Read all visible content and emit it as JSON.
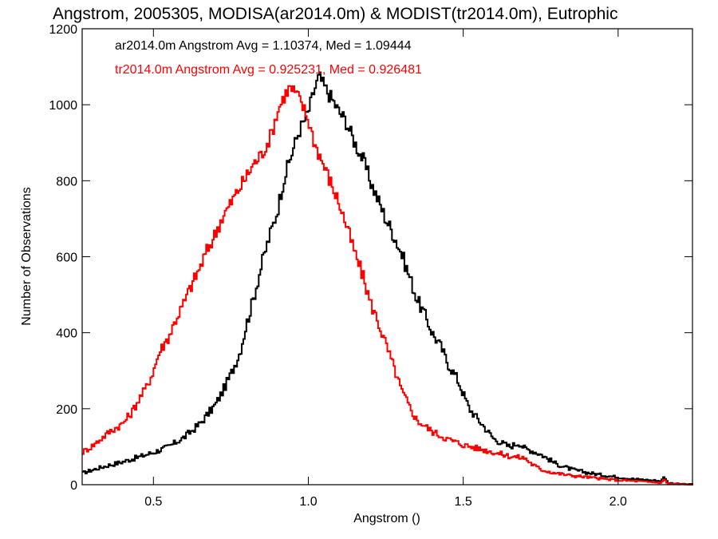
{
  "chart_data": {
    "type": "line",
    "title": "Angstrom, 2005305, MODISA(ar2014.0m) & MODIST(tr2014.0m), Eutrophic",
    "xlabel": "Angstrom ()",
    "ylabel": "Number of Observations",
    "xlim": [
      0.27,
      2.24
    ],
    "ylim": [
      0,
      1200
    ],
    "x_ticks": [
      0.5,
      1.0,
      1.5,
      2.0
    ],
    "x_tick_labels": [
      "0.5",
      "1.0",
      "1.5",
      "2.0"
    ],
    "y_ticks": [
      0,
      200,
      400,
      600,
      800,
      1000,
      1200
    ],
    "y_tick_labels": [
      "0",
      "200",
      "400",
      "600",
      "800",
      "1000",
      "1200"
    ],
    "grid": false,
    "legend_position": "top-left",
    "series": [
      {
        "name": "ar2014.0m",
        "annotation": "ar2014.0m Angstrom Avg = 1.10374, Med = 1.09444",
        "color": "#000000",
        "step": true,
        "points": [
          [
            0.27,
            30
          ],
          [
            0.3,
            38
          ],
          [
            0.35,
            50
          ],
          [
            0.4,
            60
          ],
          [
            0.45,
            72
          ],
          [
            0.5,
            85
          ],
          [
            0.55,
            100
          ],
          [
            0.6,
            125
          ],
          [
            0.65,
            160
          ],
          [
            0.7,
            210
          ],
          [
            0.72,
            240
          ],
          [
            0.75,
            290
          ],
          [
            0.78,
            350
          ],
          [
            0.8,
            420
          ],
          [
            0.82,
            480
          ],
          [
            0.85,
            580
          ],
          [
            0.87,
            640
          ],
          [
            0.9,
            720
          ],
          [
            0.92,
            800
          ],
          [
            0.95,
            880
          ],
          [
            0.97,
            930
          ],
          [
            1.0,
            980
          ],
          [
            1.02,
            1040
          ],
          [
            1.035,
            1075
          ],
          [
            1.05,
            1050
          ],
          [
            1.08,
            1010
          ],
          [
            1.1,
            980
          ],
          [
            1.12,
            960
          ],
          [
            1.15,
            900
          ],
          [
            1.18,
            850
          ],
          [
            1.2,
            800
          ],
          [
            1.22,
            760
          ],
          [
            1.25,
            700
          ],
          [
            1.28,
            650
          ],
          [
            1.3,
            610
          ],
          [
            1.33,
            540
          ],
          [
            1.35,
            490
          ],
          [
            1.38,
            440
          ],
          [
            1.4,
            400
          ],
          [
            1.43,
            360
          ],
          [
            1.45,
            320
          ],
          [
            1.48,
            280
          ],
          [
            1.5,
            240
          ],
          [
            1.52,
            200
          ],
          [
            1.55,
            170
          ],
          [
            1.58,
            140
          ],
          [
            1.6,
            120
          ],
          [
            1.65,
            100
          ],
          [
            1.68,
            110
          ],
          [
            1.7,
            95
          ],
          [
            1.72,
            90
          ],
          [
            1.75,
            80
          ],
          [
            1.8,
            55
          ],
          [
            1.85,
            40
          ],
          [
            1.9,
            32
          ],
          [
            1.95,
            25
          ],
          [
            2.0,
            20
          ],
          [
            2.05,
            15
          ],
          [
            2.1,
            12
          ],
          [
            2.14,
            10
          ],
          [
            2.15,
            22
          ],
          [
            2.16,
            5
          ],
          [
            2.2,
            2
          ],
          [
            2.24,
            1
          ]
        ]
      },
      {
        "name": "tr2014.0m",
        "annotation": "tr2014.0m Angstrom Avg = 0.925231, Med = 0.926481",
        "color": "#ff0000",
        "step": true,
        "points": [
          [
            0.27,
            85
          ],
          [
            0.3,
            100
          ],
          [
            0.33,
            120
          ],
          [
            0.36,
            140
          ],
          [
            0.4,
            160
          ],
          [
            0.43,
            190
          ],
          [
            0.45,
            220
          ],
          [
            0.48,
            260
          ],
          [
            0.5,
            300
          ],
          [
            0.52,
            350
          ],
          [
            0.55,
            390
          ],
          [
            0.57,
            430
          ],
          [
            0.6,
            480
          ],
          [
            0.62,
            520
          ],
          [
            0.65,
            570
          ],
          [
            0.67,
            610
          ],
          [
            0.7,
            660
          ],
          [
            0.72,
            700
          ],
          [
            0.75,
            740
          ],
          [
            0.77,
            770
          ],
          [
            0.8,
            810
          ],
          [
            0.82,
            840
          ],
          [
            0.85,
            870
          ],
          [
            0.88,
            920
          ],
          [
            0.9,
            980
          ],
          [
            0.92,
            1020
          ],
          [
            0.94,
            1045
          ],
          [
            0.96,
            1030
          ],
          [
            0.98,
            1000
          ],
          [
            1.0,
            960
          ],
          [
            1.02,
            900
          ],
          [
            1.05,
            840
          ],
          [
            1.08,
            780
          ],
          [
            1.1,
            740
          ],
          [
            1.12,
            690
          ],
          [
            1.15,
            610
          ],
          [
            1.18,
            540
          ],
          [
            1.2,
            480
          ],
          [
            1.22,
            440
          ],
          [
            1.25,
            370
          ],
          [
            1.28,
            300
          ],
          [
            1.3,
            250
          ],
          [
            1.33,
            200
          ],
          [
            1.35,
            170
          ],
          [
            1.4,
            140
          ],
          [
            1.45,
            120
          ],
          [
            1.5,
            105
          ],
          [
            1.55,
            95
          ],
          [
            1.6,
            85
          ],
          [
            1.65,
            75
          ],
          [
            1.7,
            70
          ],
          [
            1.72,
            55
          ],
          [
            1.75,
            40
          ],
          [
            1.8,
            30
          ],
          [
            1.85,
            24
          ],
          [
            1.9,
            20
          ],
          [
            1.95,
            15
          ],
          [
            2.0,
            12
          ],
          [
            2.05,
            10
          ],
          [
            2.1,
            7
          ],
          [
            2.14,
            5
          ],
          [
            2.15,
            15
          ],
          [
            2.16,
            3
          ],
          [
            2.2,
            1
          ],
          [
            2.24,
            0
          ]
        ]
      }
    ]
  }
}
